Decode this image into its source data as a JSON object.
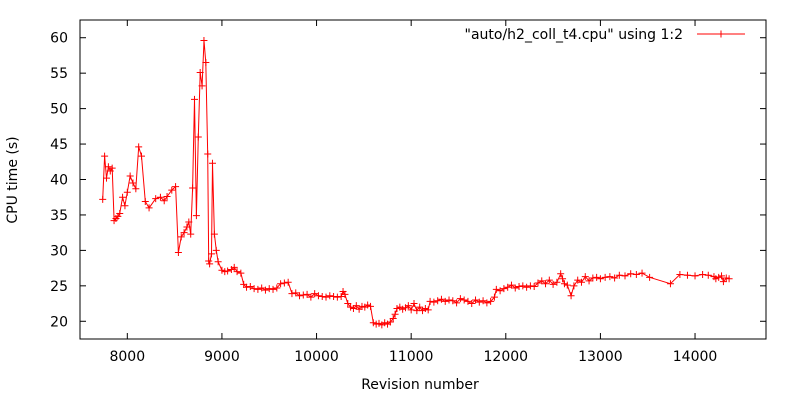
{
  "chart_data": {
    "type": "line",
    "title": "",
    "xlabel": "Revision number",
    "ylabel": "CPU time (s)",
    "xlim": [
      7500,
      14750
    ],
    "ylim": [
      17.5,
      62.5
    ],
    "x_ticks": [
      8000,
      9000,
      10000,
      11000,
      12000,
      13000,
      14000
    ],
    "y_ticks": [
      20,
      25,
      30,
      35,
      40,
      45,
      50,
      55,
      60
    ],
    "grid": false,
    "legend_position": "top-right",
    "marker": "plus",
    "series": [
      {
        "name": "\"auto/h2_coll_t4.cpu\" using 1:2",
        "color": "#ff0000",
        "points": [
          [
            7740,
            37.2
          ],
          [
            7760,
            43.3
          ],
          [
            7780,
            40.2
          ],
          [
            7800,
            41.8
          ],
          [
            7820,
            41.2
          ],
          [
            7840,
            41.6
          ],
          [
            7860,
            34.2
          ],
          [
            7880,
            34.5
          ],
          [
            7900,
            34.8
          ],
          [
            7920,
            35.2
          ],
          [
            7950,
            37.5
          ],
          [
            7975,
            36.3
          ],
          [
            8000,
            38.2
          ],
          [
            8030,
            40.5
          ],
          [
            8060,
            39.5
          ],
          [
            8090,
            38.7
          ],
          [
            8120,
            44.6
          ],
          [
            8150,
            43.3
          ],
          [
            8190,
            36.9
          ],
          [
            8230,
            36.0
          ],
          [
            8300,
            37.3
          ],
          [
            8350,
            37.5
          ],
          [
            8390,
            37.0
          ],
          [
            8420,
            37.6
          ],
          [
            8470,
            38.5
          ],
          [
            8510,
            39.0
          ],
          [
            8540,
            29.7
          ],
          [
            8570,
            31.9
          ],
          [
            8600,
            32.5
          ],
          [
            8630,
            33.3
          ],
          [
            8650,
            34.0
          ],
          [
            8670,
            32.3
          ],
          [
            8690,
            38.8
          ],
          [
            8710,
            51.3
          ],
          [
            8730,
            34.9
          ],
          [
            8750,
            46.0
          ],
          [
            8770,
            55.1
          ],
          [
            8790,
            53.2
          ],
          [
            8810,
            59.6
          ],
          [
            8830,
            56.5
          ],
          [
            8850,
            43.6
          ],
          [
            8860,
            28.5
          ],
          [
            8870,
            28.1
          ],
          [
            8890,
            29.5
          ],
          [
            8900,
            42.3
          ],
          [
            8920,
            32.3
          ],
          [
            8940,
            30.0
          ],
          [
            8960,
            28.4
          ],
          [
            9000,
            27.2
          ],
          [
            9030,
            27.0
          ],
          [
            9060,
            27.1
          ],
          [
            9100,
            27.3
          ],
          [
            9130,
            27.6
          ],
          [
            9160,
            27.0
          ],
          [
            9200,
            26.8
          ],
          [
            9230,
            25.2
          ],
          [
            9260,
            24.8
          ],
          [
            9300,
            24.9
          ],
          [
            9340,
            24.6
          ],
          [
            9380,
            24.5
          ],
          [
            9420,
            24.7
          ],
          [
            9460,
            24.4
          ],
          [
            9500,
            24.6
          ],
          [
            9540,
            24.5
          ],
          [
            9580,
            24.7
          ],
          [
            9620,
            25.3
          ],
          [
            9660,
            25.4
          ],
          [
            9700,
            25.5
          ],
          [
            9740,
            23.9
          ],
          [
            9780,
            24.0
          ],
          [
            9820,
            23.6
          ],
          [
            9860,
            23.7
          ],
          [
            9900,
            23.8
          ],
          [
            9940,
            23.4
          ],
          [
            9980,
            23.9
          ],
          [
            10020,
            23.6
          ],
          [
            10060,
            23.5
          ],
          [
            10100,
            23.4
          ],
          [
            10140,
            23.6
          ],
          [
            10180,
            23.5
          ],
          [
            10220,
            23.4
          ],
          [
            10260,
            23.5
          ],
          [
            10280,
            24.2
          ],
          [
            10300,
            23.8
          ],
          [
            10330,
            22.5
          ],
          [
            10360,
            22.0
          ],
          [
            10390,
            21.8
          ],
          [
            10420,
            22.2
          ],
          [
            10450,
            21.7
          ],
          [
            10480,
            22.1
          ],
          [
            10510,
            22.0
          ],
          [
            10540,
            22.3
          ],
          [
            10570,
            22.1
          ],
          [
            10600,
            19.8
          ],
          [
            10630,
            19.6
          ],
          [
            10660,
            19.7
          ],
          [
            10690,
            19.5
          ],
          [
            10720,
            19.8
          ],
          [
            10750,
            19.6
          ],
          [
            10780,
            19.9
          ],
          [
            10810,
            20.4
          ],
          [
            10830,
            21.0
          ],
          [
            10850,
            21.8
          ],
          [
            10880,
            22.0
          ],
          [
            10910,
            21.7
          ],
          [
            10940,
            21.9
          ],
          [
            10970,
            22.2
          ],
          [
            11000,
            21.6
          ],
          [
            11030,
            22.5
          ],
          [
            11060,
            21.5
          ],
          [
            11090,
            22.0
          ],
          [
            11120,
            21.5
          ],
          [
            11150,
            21.8
          ],
          [
            11180,
            21.6
          ],
          [
            11200,
            22.8
          ],
          [
            11240,
            22.7
          ],
          [
            11280,
            22.9
          ],
          [
            11320,
            23.1
          ],
          [
            11360,
            22.8
          ],
          [
            11400,
            23.0
          ],
          [
            11440,
            22.9
          ],
          [
            11480,
            22.6
          ],
          [
            11520,
            23.2
          ],
          [
            11560,
            23.0
          ],
          [
            11600,
            22.8
          ],
          [
            11640,
            22.5
          ],
          [
            11680,
            23.0
          ],
          [
            11720,
            22.7
          ],
          [
            11760,
            22.9
          ],
          [
            11800,
            22.6
          ],
          [
            11840,
            22.8
          ],
          [
            11880,
            23.4
          ],
          [
            11900,
            24.5
          ],
          [
            11940,
            24.3
          ],
          [
            11980,
            24.6
          ],
          [
            12020,
            24.8
          ],
          [
            12060,
            25.1
          ],
          [
            12100,
            24.7
          ],
          [
            12140,
            24.9
          ],
          [
            12180,
            25.0
          ],
          [
            12220,
            24.8
          ],
          [
            12260,
            25.0
          ],
          [
            12300,
            24.9
          ],
          [
            12340,
            25.4
          ],
          [
            12380,
            25.7
          ],
          [
            12420,
            25.3
          ],
          [
            12460,
            25.8
          ],
          [
            12500,
            25.2
          ],
          [
            12540,
            25.5
          ],
          [
            12580,
            26.7
          ],
          [
            12600,
            26.0
          ],
          [
            12620,
            25.3
          ],
          [
            12650,
            25.1
          ],
          [
            12690,
            23.6
          ],
          [
            12720,
            25.0
          ],
          [
            12760,
            25.8
          ],
          [
            12800,
            25.5
          ],
          [
            12840,
            26.3
          ],
          [
            12880,
            25.7
          ],
          [
            12920,
            26.1
          ],
          [
            12960,
            26.2
          ],
          [
            13000,
            26.0
          ],
          [
            13050,
            26.2
          ],
          [
            13100,
            26.3
          ],
          [
            13150,
            26.1
          ],
          [
            13200,
            26.5
          ],
          [
            13260,
            26.4
          ],
          [
            13320,
            26.7
          ],
          [
            13380,
            26.6
          ],
          [
            13440,
            26.8
          ],
          [
            13520,
            26.2
          ],
          [
            13740,
            25.3
          ],
          [
            13840,
            26.6
          ],
          [
            13920,
            26.5
          ],
          [
            14000,
            26.4
          ],
          [
            14080,
            26.6
          ],
          [
            14140,
            26.5
          ],
          [
            14200,
            26.3
          ],
          [
            14220,
            26.0
          ],
          [
            14250,
            26.2
          ],
          [
            14280,
            26.4
          ],
          [
            14300,
            25.6
          ],
          [
            14330,
            26.1
          ],
          [
            14360,
            26.0
          ]
        ]
      }
    ]
  }
}
